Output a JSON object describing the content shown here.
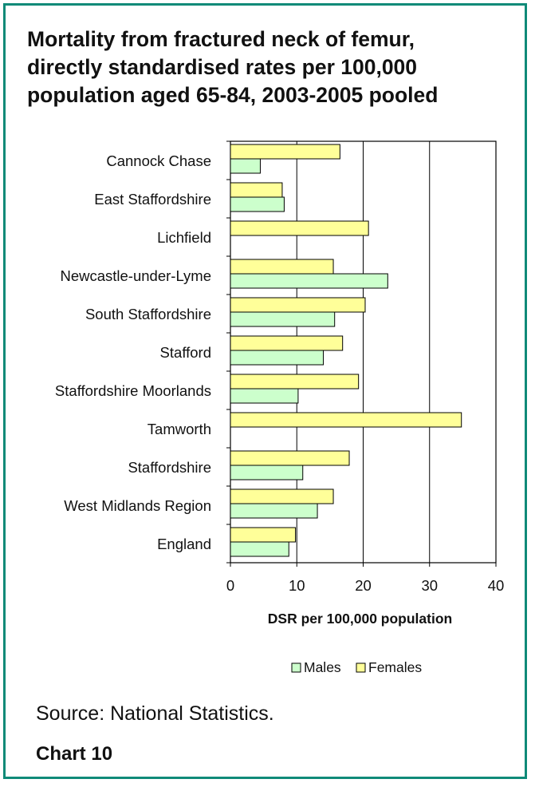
{
  "title_lines": [
    "Mortality from fractured neck of femur,",
    "directly standardised rates per 100,000",
    "population aged 65-84, 2003-2005 pooled"
  ],
  "source_text": "Source: National Statistics.",
  "chart_label": "Chart 10",
  "colors": {
    "frame": "#0f8a78",
    "males": "#ccffcc",
    "females": "#ffff99",
    "bar_stroke": "#000000"
  },
  "chart_data": {
    "type": "bar",
    "orientation": "horizontal",
    "title": "Mortality from fractured neck of femur, directly standardised rates per 100,000 population aged 65-84, 2003-2005 pooled",
    "categories": [
      "Cannock Chase",
      "East Staffordshire",
      "Lichfield",
      "Newcastle-under-Lyme",
      "South Staffordshire",
      "Stafford",
      "Staffordshire Moorlands",
      "Tamworth",
      "Staffordshire",
      "West Midlands Region",
      "England"
    ],
    "series": [
      {
        "name": "Females",
        "values": [
          16.5,
          7.8,
          20.8,
          15.5,
          20.3,
          16.9,
          19.3,
          34.8,
          17.9,
          15.5,
          9.8
        ]
      },
      {
        "name": "Males",
        "values": [
          4.5,
          8.1,
          0,
          23.7,
          15.7,
          14.0,
          10.2,
          0,
          10.9,
          13.1,
          8.8
        ]
      }
    ],
    "xlabel": "DSR per 100,000 population",
    "ylabel": "",
    "xlim": [
      0,
      40
    ],
    "xticks": [
      "0",
      "10",
      "20",
      "30",
      "40"
    ],
    "grid": true,
    "legend": {
      "position": "bottom",
      "entries": [
        "Males",
        "Females"
      ]
    }
  }
}
